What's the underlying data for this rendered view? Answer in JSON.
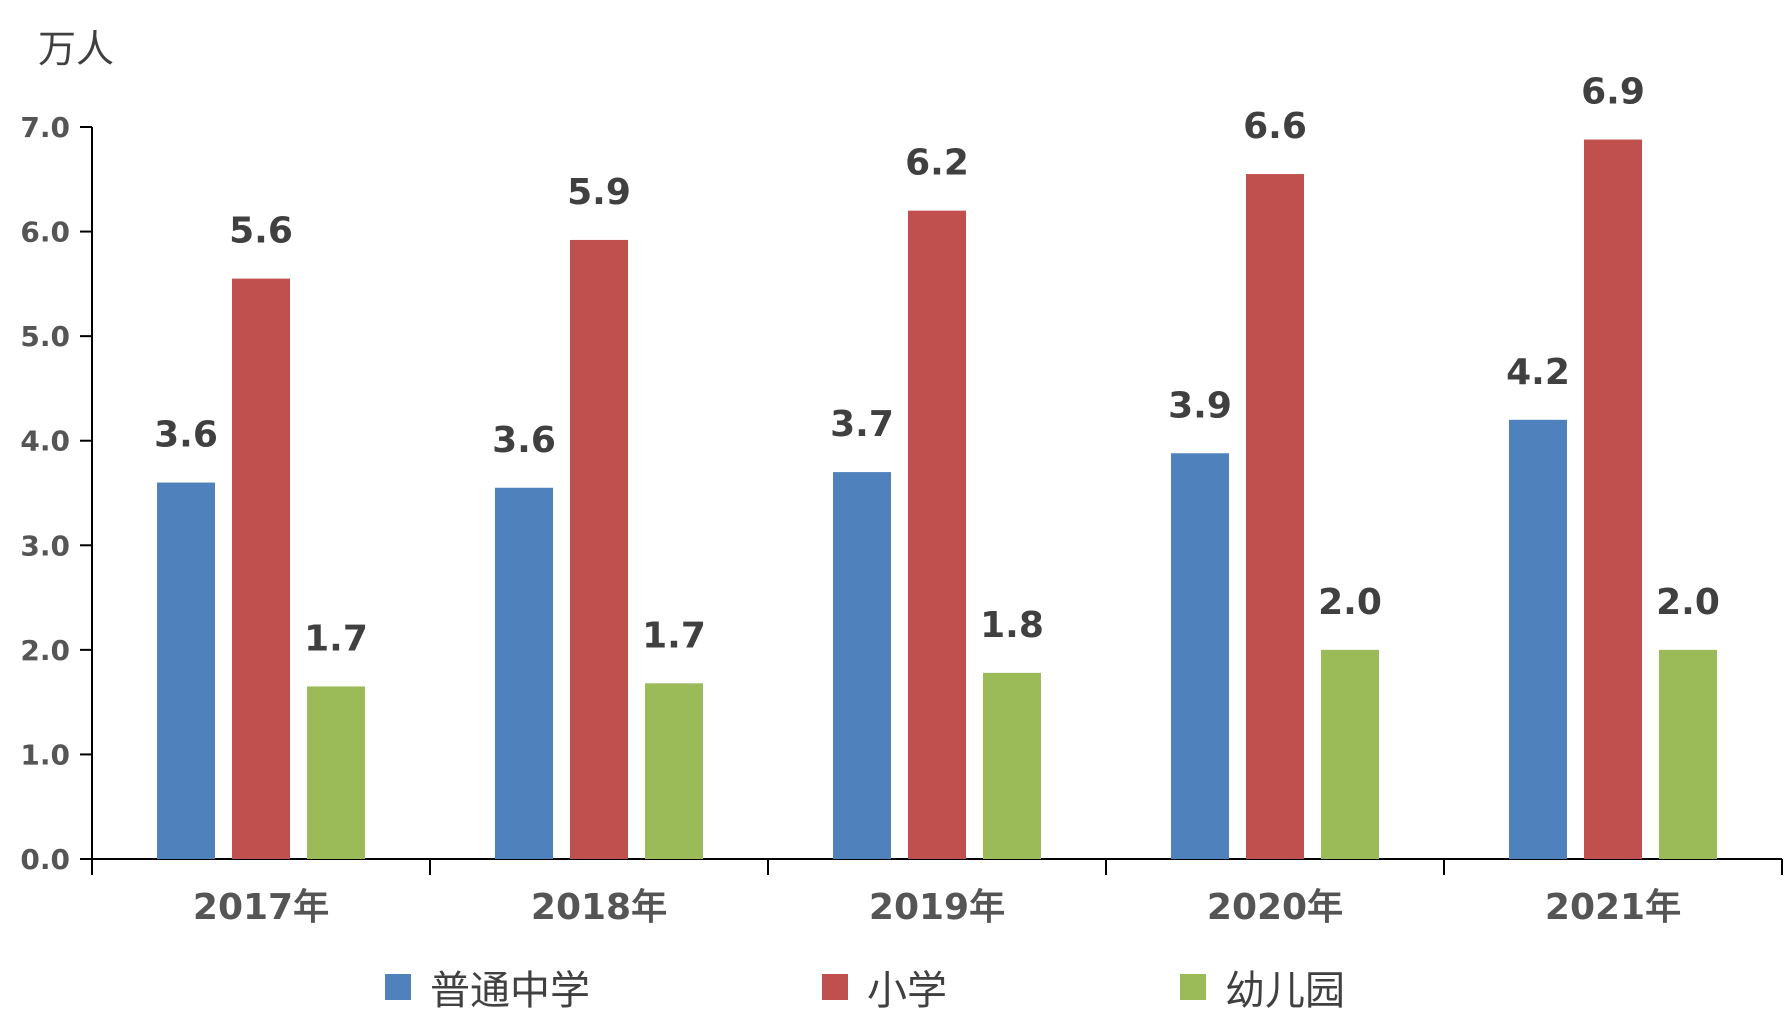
{
  "chart_data": {
    "type": "bar",
    "unit_label": "万人",
    "categories": [
      "2017年",
      "2018年",
      "2019年",
      "2020年",
      "2021年"
    ],
    "series": [
      {
        "name": "普通中学",
        "color": "#4F81BD",
        "values": [
          3.6,
          3.55,
          3.7,
          3.88,
          4.2
        ],
        "labels": [
          "3.6",
          "3.6",
          "3.7",
          "3.9",
          "4.2"
        ]
      },
      {
        "name": "小学",
        "color": "#C0504D",
        "values": [
          5.55,
          5.92,
          6.2,
          6.55,
          6.88
        ],
        "labels": [
          "5.6",
          "5.9",
          "6.2",
          "6.6",
          "6.9"
        ]
      },
      {
        "name": "幼儿园",
        "color": "#9BBB59",
        "values": [
          1.65,
          1.68,
          1.78,
          2.0,
          2.0
        ],
        "labels": [
          "1.7",
          "1.7",
          "1.8",
          "2.0",
          "2.0"
        ]
      }
    ],
    "yticks": [
      "0.0",
      "1.0",
      "2.0",
      "3.0",
      "4.0",
      "5.0",
      "6.0",
      "7.0"
    ],
    "ylim": [
      0,
      7
    ],
    "grid": false,
    "legend_position": "bottom"
  }
}
